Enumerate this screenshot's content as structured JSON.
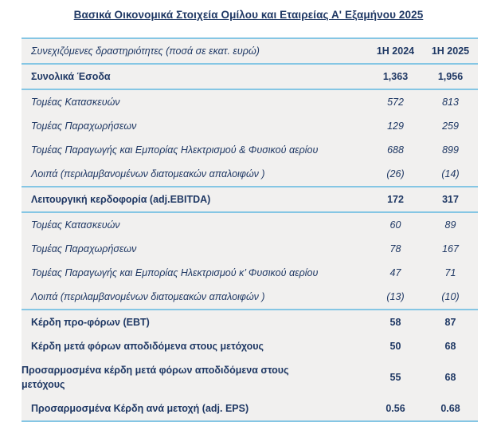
{
  "title": "Βασικά Οικονομικά Στοιχεία Ομίλου και Εταιρείας Α' Εξαμήνου 2025",
  "colors": {
    "text_navy": "#1f3864",
    "rule_blue": "#85c6e4",
    "table_bg": "#f1f0ef",
    "page_bg": "#ffffff"
  },
  "table": {
    "header": {
      "label": "Συνεχιζόμενες δραστηριότητες (ποσά σε εκατ. ευρώ)",
      "col1": "1H 2024",
      "col2": "1H 2025"
    },
    "rows": [
      {
        "label": "Συνολικά Έσοδα",
        "v1": "1,363",
        "v2": "1,956"
      },
      {
        "label": "Τομέας Κατασκευών",
        "v1": "572",
        "v2": "813"
      },
      {
        "label": "Τομέας Παραχωρήσεων",
        "v1": "129",
        "v2": "259"
      },
      {
        "label": "Τομέας Παραγωγής και Εμπορίας Ηλεκτρισμού & Φυσικού αερίου",
        "v1": "688",
        "v2": "899"
      },
      {
        "label": "Λοιπά (περιλαμβανομένων διατομεακών απαλοιφών )",
        "v1": "(26)",
        "v2": "(14)"
      },
      {
        "label": "Λειτουργική κερδοφορία (adj.EBITDA)",
        "v1": "172",
        "v2": "317"
      },
      {
        "label": "Τομέας Κατασκευών",
        "v1": "60",
        "v2": "89"
      },
      {
        "label": "Τομέας Παραχωρήσεων",
        "v1": "78",
        "v2": "167"
      },
      {
        "label": "Τομέας Παραγωγής και Εμπορίας Ηλεκτρισμού κ’ Φυσικού αερίου",
        "v1": "47",
        "v2": "71"
      },
      {
        "label": "Λοιπά (περιλαμβανομένων διατομεακών απαλοιφών )",
        "v1": "(13)",
        "v2": "(10)"
      },
      {
        "label": "Κέρδη προ-φόρων (EBT)",
        "v1": "58",
        "v2": "87"
      },
      {
        "label": "Κέρδη μετά φόρων αποδιδόμενα στους μετόχους",
        "v1": "50",
        "v2": "68"
      },
      {
        "label": "Προσαρμοσμένα κέρδη μετά φόρων αποδιδόμενα στους μετόχους",
        "v1": "55",
        "v2": "68"
      },
      {
        "label": "Προσαρμοσμένα Κέρδη ανά μετοχή (adj. EPS)",
        "v1": "0.56",
        "v2": "0.68"
      }
    ]
  }
}
